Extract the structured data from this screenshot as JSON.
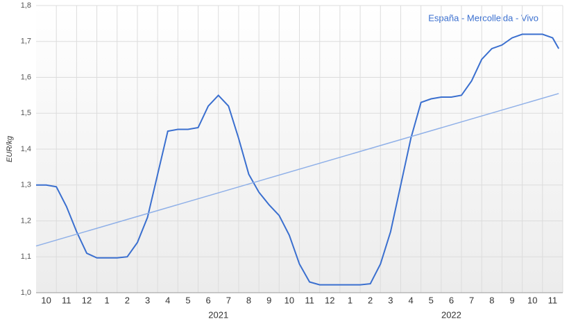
{
  "chart_data": {
    "type": "line",
    "annotation": "España - Mercolleida - Vivo",
    "y_label": "EUR/kg",
    "xlim": [
      0,
      26
    ],
    "ylim": [
      1.0,
      1.8
    ],
    "yticks": [
      {
        "value": 1.0,
        "label": "1,0"
      },
      {
        "value": 1.1,
        "label": "1,1"
      },
      {
        "value": 1.2,
        "label": "1,2"
      },
      {
        "value": 1.3,
        "label": "1,3"
      },
      {
        "value": 1.4,
        "label": "1,4"
      },
      {
        "value": 1.5,
        "label": "1,5"
      },
      {
        "value": 1.6,
        "label": "1,6"
      },
      {
        "value": 1.7,
        "label": "1,7"
      },
      {
        "value": 1.8,
        "label": "1,8"
      }
    ],
    "xticks": [
      {
        "value": 0.5,
        "label": "10"
      },
      {
        "value": 1.5,
        "label": "11"
      },
      {
        "value": 2.5,
        "label": "12"
      },
      {
        "value": 3.5,
        "label": "1"
      },
      {
        "value": 4.5,
        "label": "2"
      },
      {
        "value": 5.5,
        "label": "3"
      },
      {
        "value": 6.5,
        "label": "4"
      },
      {
        "value": 7.5,
        "label": "5"
      },
      {
        "value": 8.5,
        "label": "6"
      },
      {
        "value": 9.5,
        "label": "7"
      },
      {
        "value": 10.5,
        "label": "8"
      },
      {
        "value": 11.5,
        "label": "9"
      },
      {
        "value": 12.5,
        "label": "10"
      },
      {
        "value": 13.5,
        "label": "11"
      },
      {
        "value": 14.5,
        "label": "12"
      },
      {
        "value": 15.5,
        "label": "1"
      },
      {
        "value": 16.5,
        "label": "2"
      },
      {
        "value": 17.5,
        "label": "3"
      },
      {
        "value": 18.5,
        "label": "4"
      },
      {
        "value": 19.5,
        "label": "5"
      },
      {
        "value": 20.5,
        "label": "6"
      },
      {
        "value": 21.5,
        "label": "7"
      },
      {
        "value": 22.5,
        "label": "8"
      },
      {
        "value": 23.5,
        "label": "9"
      },
      {
        "value": 24.5,
        "label": "10"
      },
      {
        "value": 25.5,
        "label": "11"
      }
    ],
    "x_groups": [
      {
        "value": 9,
        "label": "2021"
      },
      {
        "value": 20.5,
        "label": "2022"
      }
    ],
    "grid": true,
    "series": [
      {
        "color": "#3a6fcf",
        "x": [
          0,
          0.5,
          1,
          1.5,
          2,
          2.5,
          3,
          3.5,
          4,
          4.5,
          5,
          5.5,
          6,
          6.5,
          7,
          7.5,
          8,
          8.5,
          9,
          9.5,
          10,
          10.5,
          11,
          11.5,
          12,
          12.5,
          13,
          13.5,
          14,
          14.5,
          15,
          15.5,
          16,
          16.5,
          17,
          17.5,
          18,
          18.5,
          19,
          19.5,
          20,
          20.5,
          21,
          21.5,
          22,
          22.5,
          23,
          23.5,
          24,
          24.5,
          25,
          25.5,
          25.8
        ],
        "values": [
          1.3,
          1.3,
          1.295,
          1.24,
          1.17,
          1.11,
          1.097,
          1.097,
          1.097,
          1.1,
          1.14,
          1.21,
          1.33,
          1.45,
          1.455,
          1.455,
          1.46,
          1.52,
          1.55,
          1.52,
          1.43,
          1.33,
          1.28,
          1.245,
          1.215,
          1.16,
          1.08,
          1.03,
          1.022,
          1.022,
          1.022,
          1.022,
          1.022,
          1.025,
          1.08,
          1.17,
          1.3,
          1.43,
          1.53,
          1.54,
          1.545,
          1.545,
          1.55,
          1.59,
          1.65,
          1.68,
          1.69,
          1.71,
          1.72,
          1.72,
          1.72,
          1.71,
          1.68
        ]
      },
      {
        "color": "#8fb0e8",
        "x": [
          0,
          25.8
        ],
        "values": [
          1.13,
          1.555
        ]
      }
    ]
  }
}
